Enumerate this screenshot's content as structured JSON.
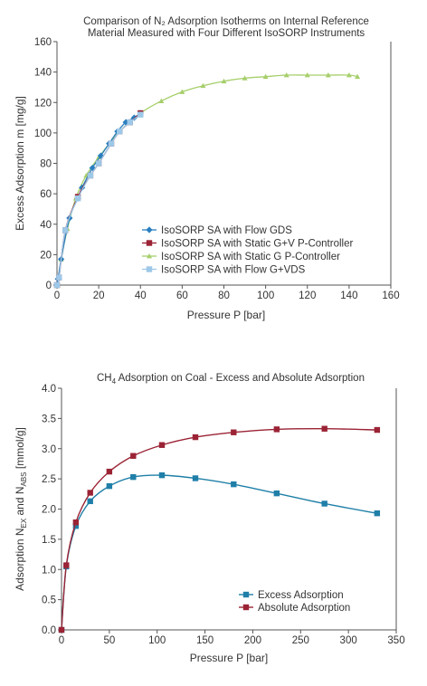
{
  "chart_data": [
    {
      "type": "scatter",
      "title_lines": [
        "Comparison of N₂ Adsorption Isotherms on Internal Reference",
        "Material Measured with Four Different IsoSORP Instruments"
      ],
      "xlabel": "Pressure P [bar]",
      "ylabel": "Excess Adsorption m [mg/g]",
      "xlim": [
        0,
        160
      ],
      "ylim": [
        0,
        160
      ],
      "xticks": [
        "0",
        "20",
        "40",
        "60",
        "80",
        "100",
        "120",
        "140",
        "160"
      ],
      "yticks": [
        "0",
        "20",
        "40",
        "60",
        "80",
        "100",
        "120",
        "140",
        "160"
      ],
      "grid": false,
      "legend_position": "center-right",
      "series": [
        {
          "name": "IsoSORP SA with Flow GDS",
          "color": "#2a7fc0",
          "marker": "diamond",
          "x": [
            0,
            0.5,
            2,
            6,
            10,
            12,
            17,
            21,
            25,
            29,
            33,
            37,
            40
          ],
          "y": [
            0,
            4,
            17,
            44,
            57,
            64,
            77,
            85,
            93,
            101,
            107,
            110,
            113
          ]
        },
        {
          "name": "IsoSORP SA with Static G+V P-Controller",
          "color": "#9b2335",
          "marker": "square",
          "x": [
            0,
            1,
            4,
            10,
            16,
            20,
            26,
            30,
            35,
            40
          ],
          "y": [
            0,
            5,
            36,
            58,
            72,
            80,
            93,
            101,
            107,
            113
          ]
        },
        {
          "name": "IsoSORP SA with Static G P-Controller",
          "color": "#a6cf6b",
          "marker": "triangle",
          "x": [
            0,
            1,
            2,
            5,
            9,
            14,
            20,
            30,
            40,
            50,
            60,
            70,
            80,
            90,
            100,
            110,
            120,
            130,
            140,
            144
          ],
          "y": [
            0,
            5,
            17,
            37,
            57,
            72,
            84,
            101,
            113,
            121,
            127,
            131,
            134,
            136,
            137,
            138,
            138,
            138,
            138,
            137
          ]
        },
        {
          "name": "IsoSORP SA with Flow G+VDS",
          "color": "#9dc8e8",
          "marker": "square",
          "x": [
            0,
            1,
            4,
            10,
            16,
            20,
            26,
            30,
            35,
            40
          ],
          "y": [
            0,
            5,
            36,
            57,
            72,
            80,
            93,
            101,
            107,
            112
          ]
        }
      ]
    },
    {
      "type": "line",
      "title_parts": {
        "prefix": "CH",
        "sub": "4",
        "rest": " Adsorption on Coal - Excess and Absolute Adsorption"
      },
      "xlabel": "Pressure P [bar]",
      "ylabel_parts": {
        "a": "Adsorption N",
        "a_sub": "EX",
        "b": " and N",
        "b_sub": "ABS",
        "c": " [mmol/g]"
      },
      "xlim": [
        0,
        350
      ],
      "ylim": [
        0,
        4
      ],
      "xticks": [
        "0",
        "50",
        "100",
        "150",
        "200",
        "250",
        "300",
        "350"
      ],
      "yticks": [
        "0.0",
        "0.5",
        "1.0",
        "1.5",
        "2.0",
        "2.5",
        "3.0",
        "3.5",
        "4.0"
      ],
      "grid": false,
      "legend_position": "bottom-right",
      "series": [
        {
          "name": "Excess Adsorption",
          "color": "#1f7fa8",
          "marker": "square",
          "x": [
            0,
            5,
            15,
            30,
            50,
            75,
            105,
            140,
            180,
            225,
            275,
            330
          ],
          "y": [
            0,
            1.05,
            1.72,
            2.13,
            2.38,
            2.53,
            2.56,
            2.51,
            2.41,
            2.26,
            2.09,
            1.93
          ]
        },
        {
          "name": "Absolute Adsorption",
          "color": "#9b2335",
          "marker": "square",
          "x": [
            0,
            5,
            15,
            30,
            50,
            75,
            105,
            140,
            180,
            225,
            275,
            330
          ],
          "y": [
            0,
            1.07,
            1.78,
            2.27,
            2.62,
            2.88,
            3.06,
            3.19,
            3.27,
            3.32,
            3.33,
            3.31
          ]
        }
      ]
    }
  ]
}
